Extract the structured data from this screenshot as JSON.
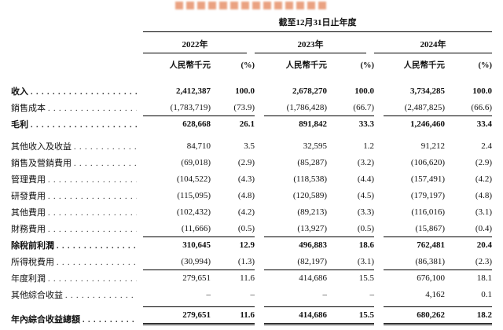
{
  "table": {
    "period_header": "截至12月31日止年度",
    "year_groups": [
      {
        "year": "2022年",
        "unit": "人民幣千元",
        "pct": "(%)"
      },
      {
        "year": "2023年",
        "unit": "人民幣千元",
        "pct": "(%)"
      },
      {
        "year": "2024年",
        "unit": "人民幣千元",
        "pct": "(%)"
      }
    ],
    "rows": [
      {
        "label": "收入",
        "bold": true,
        "values": [
          "2,412,387",
          "100.0",
          "2,678,270",
          "100.0",
          "3,734,285",
          "100.0"
        ]
      },
      {
        "label": "銷售成本",
        "values": [
          "(1,783,719)",
          "(73.9)",
          "(1,786,428)",
          "(66.7)",
          "(2,487,825)",
          "(66.6)"
        ]
      },
      {
        "label": "毛利",
        "bold": true,
        "rule_above": true,
        "values": [
          "628,668",
          "26.1",
          "891,842",
          "33.3",
          "1,246,460",
          "33.4"
        ]
      },
      {
        "label": "其他收入及收益",
        "gap_above": true,
        "values": [
          "84,710",
          "3.5",
          "32,595",
          "1.2",
          "91,212",
          "2.4"
        ]
      },
      {
        "label": "銷售及營銷費用",
        "values": [
          "(69,018)",
          "(2.9)",
          "(85,287)",
          "(3.2)",
          "(106,620)",
          "(2.9)"
        ]
      },
      {
        "label": "管理費用",
        "values": [
          "(104,522)",
          "(4.3)",
          "(118,538)",
          "(4.4)",
          "(157,491)",
          "(4.2)"
        ]
      },
      {
        "label": "研發費用",
        "values": [
          "(115,095)",
          "(4.8)",
          "(120,589)",
          "(4.5)",
          "(179,197)",
          "(4.8)"
        ]
      },
      {
        "label": "其他費用",
        "values": [
          "(102,432)",
          "(4.2)",
          "(89,213)",
          "(3.3)",
          "(116,016)",
          "(3.1)"
        ]
      },
      {
        "label": "財務費用",
        "values": [
          "(11,666)",
          "(0.5)",
          "(13,927)",
          "(0.5)",
          "(15,867)",
          "(0.4)"
        ]
      },
      {
        "label": "除稅前利潤",
        "bold": true,
        "rule_above": true,
        "values": [
          "310,645",
          "12.9",
          "496,883",
          "18.6",
          "762,481",
          "20.4"
        ]
      },
      {
        "label": "所得稅費用",
        "values": [
          "(30,994)",
          "(1.3)",
          "(82,197)",
          "(3.1)",
          "(86,381)",
          "(2.3)"
        ]
      },
      {
        "label": "年度利潤",
        "rule_above": true,
        "values": [
          "279,651",
          "11.6",
          "414,686",
          "15.5",
          "676,100",
          "18.1"
        ]
      },
      {
        "label": "其他綜合收益",
        "values": [
          "–",
          "–",
          "–",
          "–",
          "4,162",
          "0.1"
        ]
      },
      {
        "label": "年內綜合收益總額",
        "bold": true,
        "rule_above": true,
        "gap_above": true,
        "double_below": true,
        "values": [
          "279,651",
          "11.6",
          "414,686",
          "15.5",
          "680,262",
          "18.2"
        ]
      }
    ]
  }
}
